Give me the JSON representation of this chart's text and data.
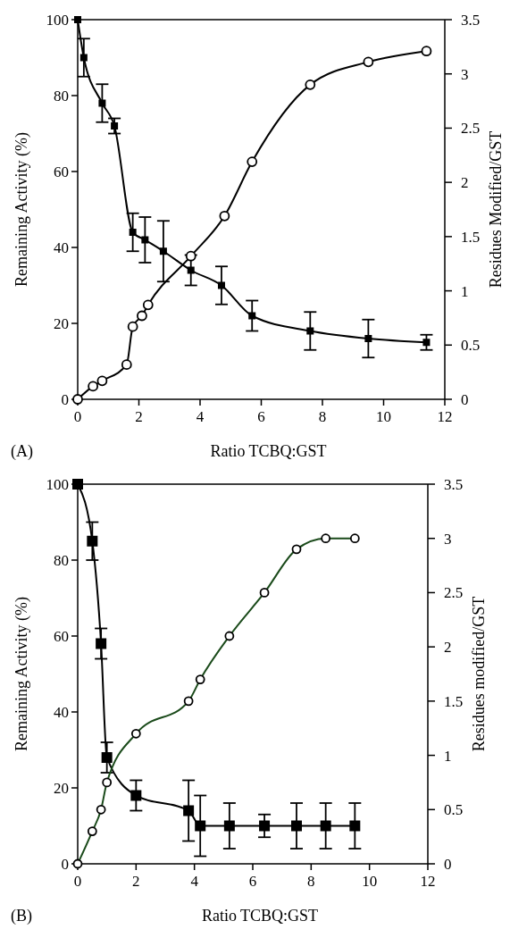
{
  "chart_data": [
    {
      "type": "line",
      "xlabel": "Ratio TCBQ:GST",
      "ylabel": "Remaining Activity (%)",
      "y2label": "Residues Modified/GST",
      "annotations": [
        "(A)"
      ],
      "xlim": [
        0,
        12
      ],
      "xticks": [
        0,
        2,
        4,
        6,
        8,
        10,
        12
      ],
      "ylim": [
        0,
        100
      ],
      "yticks": [
        0,
        20,
        40,
        60,
        80,
        100
      ],
      "y2lim": [
        0,
        3.5
      ],
      "y2ticks": [
        0,
        0.5,
        1,
        1.5,
        2,
        2.5,
        3,
        3.5
      ],
      "grid": false,
      "line_style": "solid",
      "series": [
        {
          "color": "#000000",
          "marker": "square",
          "x": [
            0,
            0.2,
            0.8,
            1.2,
            1.8,
            2.2,
            2.8,
            3.7,
            4.7,
            5.7,
            7.6,
            9.5,
            11.4
          ],
          "values": [
            100,
            90,
            78,
            72,
            44,
            42,
            39,
            34,
            30,
            22,
            18,
            16,
            15
          ],
          "errors": [
            null,
            5,
            5,
            2,
            5,
            6,
            8,
            4,
            5,
            4,
            5,
            5,
            2
          ]
        },
        {
          "color": "#000000",
          "marker": "circle",
          "axis": "y2",
          "x": [
            0,
            0.5,
            0.8,
            1.6,
            1.8,
            2.1,
            2.3,
            3.7,
            4.8,
            5.7,
            7.6,
            9.5,
            11.4
          ],
          "values": [
            0,
            0.12,
            0.17,
            0.32,
            0.67,
            0.77,
            0.87,
            1.32,
            1.69,
            2.19,
            2.9,
            3.11,
            3.21
          ]
        }
      ]
    },
    {
      "type": "line",
      "xlabel": "Ratio TCBQ:GST",
      "ylabel": "Remaining Activity (%)",
      "y2label": "Residues modified/GST",
      "annotations": [
        "(B)"
      ],
      "xlim": [
        0,
        12
      ],
      "xticks": [
        0,
        2,
        4,
        6,
        8,
        10,
        12
      ],
      "ylim": [
        0,
        100
      ],
      "yticks": [
        0,
        20,
        40,
        60,
        80,
        100
      ],
      "y2lim": [
        0,
        3.5
      ],
      "y2ticks": [
        0,
        0.5,
        1,
        1.5,
        2,
        2.5,
        3,
        3.5
      ],
      "grid": false,
      "line_style": "solid",
      "series": [
        {
          "color": "#000000",
          "marker": "square",
          "x": [
            0,
            0.5,
            0.8,
            1,
            2,
            3.8,
            4.2,
            5.2,
            6.4,
            7.5,
            8.5,
            9.5
          ],
          "values": [
            100,
            85,
            58,
            28,
            18,
            14,
            10,
            10,
            10,
            10,
            10,
            10
          ],
          "errors": [
            null,
            5,
            4,
            4,
            4,
            8,
            8,
            6,
            3,
            6,
            6,
            6
          ]
        },
        {
          "color": "#1a4a1a",
          "marker": "circle",
          "axis": "y2",
          "x": [
            0,
            0.5,
            0.8,
            1,
            2,
            3.8,
            4.2,
            5.2,
            6.4,
            7.5,
            8.5,
            9.5
          ],
          "values": [
            0,
            0.3,
            0.5,
            0.75,
            1.2,
            1.5,
            1.7,
            2.1,
            2.5,
            2.9,
            3,
            3
          ]
        }
      ]
    }
  ]
}
